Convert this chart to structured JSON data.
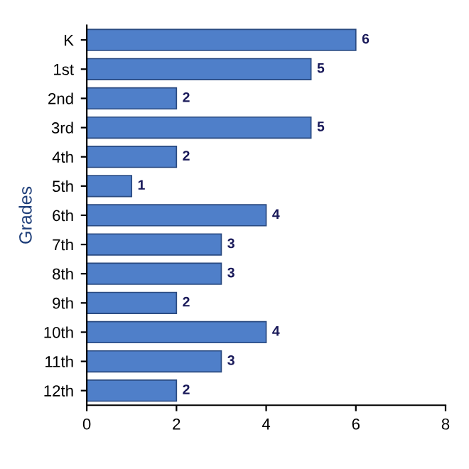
{
  "chart_data": {
    "type": "bar",
    "orientation": "horizontal",
    "ylabel": "Grades",
    "categories": [
      "K",
      "1st",
      "2nd",
      "3rd",
      "4th",
      "5th",
      "6th",
      "7th",
      "8th",
      "9th",
      "10th",
      "11th",
      "12th"
    ],
    "values": [
      6,
      5,
      2,
      5,
      2,
      1,
      4,
      3,
      3,
      2,
      4,
      3,
      2
    ],
    "color": "#4f7fc9",
    "xlim": [
      0,
      8
    ],
    "xticks": [
      0,
      2,
      4,
      6,
      8
    ],
    "data_labels": true,
    "grid": false,
    "legend": false
  }
}
